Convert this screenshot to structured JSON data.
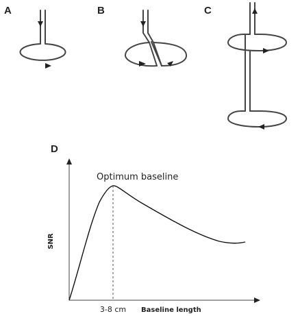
{
  "panels": {
    "a": {
      "label": "A"
    },
    "b": {
      "label": "B"
    },
    "c": {
      "label": "C"
    },
    "d": {
      "label": "D",
      "annotation": "Optimum baseline",
      "ylabel": "SNR",
      "xlabel": "Baseline length",
      "x_marker_label": "3-8 cm"
    }
  }
}
